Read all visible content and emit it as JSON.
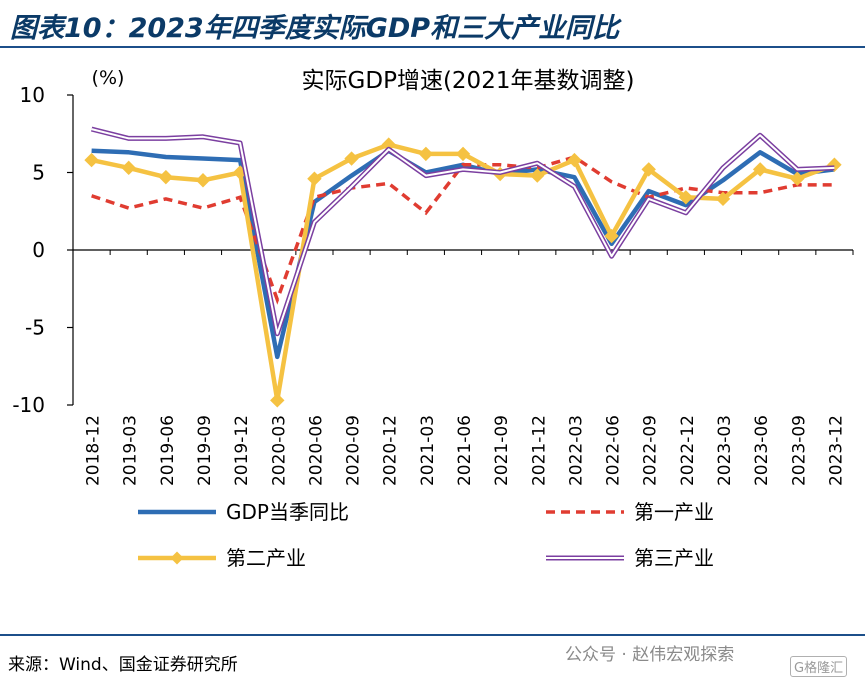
{
  "figure_title": "图表10：2023年四季度实际GDP和三大产业同比",
  "source_note": "来源：Wind、国金证券研究所",
  "watermark": "公众号 · 赵伟宏观探索",
  "watermark_logo": "G格隆汇",
  "chart_data": {
    "type": "line",
    "title": "实际GDP增速(2021年基数调整)",
    "ylabel": "(%)",
    "ylim": [
      -10,
      10
    ],
    "yticks": [
      10,
      5,
      0,
      -5,
      -10
    ],
    "grid": false,
    "legend_position": "bottom",
    "categories": [
      "2018-12",
      "2019-03",
      "2019-06",
      "2019-09",
      "2019-12",
      "2020-03",
      "2020-06",
      "2020-09",
      "2020-12",
      "2021-03",
      "2021-06",
      "2021-09",
      "2021-12",
      "2022-03",
      "2022-06",
      "2022-09",
      "2022-12",
      "2023-03",
      "2023-06",
      "2023-09",
      "2023-12"
    ],
    "series": [
      {
        "name": "GDP当季同比",
        "color": "#2e6db4",
        "style": "solid",
        "marker": "none",
        "values": [
          6.4,
          6.3,
          6.0,
          5.9,
          5.8,
          -6.9,
          3.1,
          4.8,
          6.4,
          5.0,
          5.5,
          4.9,
          5.2,
          4.7,
          0.4,
          3.8,
          2.9,
          4.5,
          6.3,
          4.9,
          5.2
        ]
      },
      {
        "name": "第一产业",
        "color": "#e03c31",
        "style": "dashed",
        "marker": "none",
        "values": [
          3.5,
          2.7,
          3.3,
          2.7,
          3.4,
          -3.2,
          3.4,
          4.0,
          4.3,
          2.4,
          5.5,
          5.5,
          5.3,
          6.0,
          4.4,
          3.4,
          4.0,
          3.7,
          3.7,
          4.2,
          4.2
        ]
      },
      {
        "name": "第二产业",
        "color": "#f5c242",
        "style": "solid",
        "marker": "diamond",
        "values": [
          5.8,
          5.3,
          4.7,
          4.5,
          5.0,
          -9.7,
          4.6,
          5.9,
          6.8,
          6.2,
          6.2,
          4.9,
          4.8,
          5.8,
          0.9,
          5.2,
          3.4,
          3.3,
          5.2,
          4.6,
          5.5
        ]
      },
      {
        "name": "第三产业",
        "color": "#7b3fa0",
        "style": "double",
        "marker": "none",
        "values": [
          7.8,
          7.2,
          7.2,
          7.3,
          6.9,
          -5.4,
          1.8,
          4.1,
          6.5,
          4.8,
          5.2,
          5.0,
          5.6,
          4.1,
          -0.4,
          3.3,
          2.4,
          5.3,
          7.4,
          5.2,
          5.3
        ]
      }
    ]
  }
}
